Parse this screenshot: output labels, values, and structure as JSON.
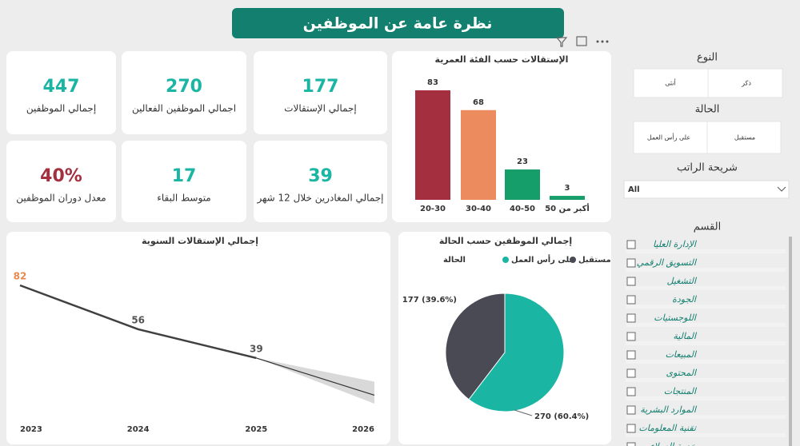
{
  "header": {
    "title": "نظرة عامة عن الموظفين"
  },
  "kpis": [
    {
      "value": "447",
      "label": "إجمالي الموظفين",
      "color": "#1ab5a3"
    },
    {
      "value": "270",
      "label": "اجمالي الموظفين الفعالين",
      "color": "#1ab5a3"
    },
    {
      "value": "177",
      "label": "إجمالي الإستقالات",
      "color": "#1ab5a3"
    },
    {
      "value": "40%",
      "label": "معدل دوران الموظفين",
      "color": "#a4303f"
    },
    {
      "value": "17",
      "label": "متوسط البقاء",
      "color": "#1ab5a3"
    },
    {
      "value": "39",
      "label": "إجمالي المغادرين خلال 12 شهر",
      "color": "#1ab5a3"
    }
  ],
  "chart_data": [
    {
      "type": "bar",
      "title": "الإستقالات حسب الفئة العمرية",
      "categories": [
        "20-30",
        "30-40",
        "40-50",
        "أكبر من 50"
      ],
      "values": [
        83,
        68,
        23,
        3
      ],
      "colors": [
        "#a4303f",
        "#ec8c5e",
        "#159e6a",
        "#159e6a"
      ]
    },
    {
      "type": "line",
      "title": "إجمالي الإستقالات السنوية",
      "x": [
        2023,
        2024,
        2025,
        2026
      ],
      "values": [
        82,
        56,
        39,
        null
      ],
      "label_colors": [
        "#e8894f",
        "#555555",
        "#555555",
        null
      ],
      "forecast": [
        null,
        null,
        39,
        17
      ],
      "forecast_lower": [
        null,
        null,
        39,
        12
      ],
      "forecast_upper": [
        null,
        null,
        39,
        25
      ],
      "color": "#404040"
    },
    {
      "type": "pie",
      "title": "إجمالي الموظفين حسب الحالة",
      "legend_title": "الحالة",
      "categories": [
        "على رأس العمل",
        "مستقبل"
      ],
      "values": [
        270,
        177
      ],
      "value_labels": [
        "270 (60.4%)",
        "177 (39.6%)"
      ],
      "colors": [
        "#1ab5a3",
        "#4a4a55"
      ]
    }
  ],
  "slicers": {
    "gender": {
      "title": "النوع",
      "options": [
        "ذكر",
        "أنثى"
      ]
    },
    "status": {
      "title": "الحالة",
      "options": [
        "مستقبل",
        "على رأس العمل"
      ]
    },
    "salary": {
      "title": "شريحة الراتب",
      "selected": "All"
    },
    "department": {
      "title": "القسم",
      "items": [
        "الإدارة العليا",
        "التسويق الرقمي",
        "التشغيل",
        "الجودة",
        "اللوجستيات",
        "المالية",
        "المبيعات",
        "المحتوى",
        "المنتجات",
        "الموارد البشرية",
        "تقنية المعلومات",
        "خدمة العملاء"
      ]
    }
  }
}
